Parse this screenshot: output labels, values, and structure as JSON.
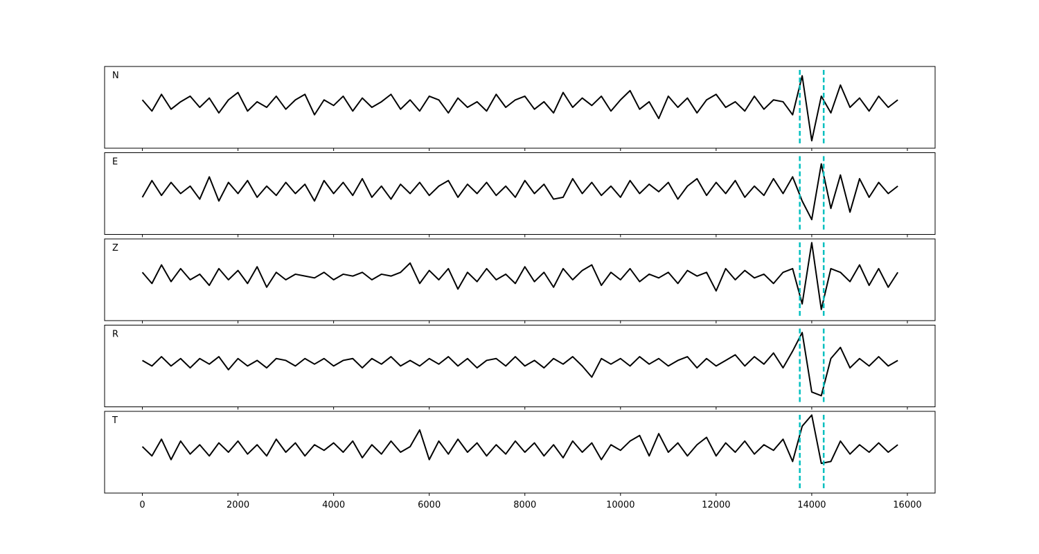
{
  "chart_data": {
    "type": "line",
    "layout": "stacked",
    "x": [
      0,
      200,
      400,
      600,
      800,
      1000,
      1200,
      1400,
      1600,
      1800,
      2000,
      2200,
      2400,
      2600,
      2800,
      3000,
      3200,
      3400,
      3600,
      3800,
      4000,
      4200,
      4400,
      4600,
      4800,
      5000,
      5200,
      5400,
      5600,
      5800,
      6000,
      6200,
      6400,
      6600,
      6800,
      7000,
      7200,
      7400,
      7600,
      7800,
      8000,
      8200,
      8400,
      8600,
      8800,
      9000,
      9200,
      9400,
      9600,
      9800,
      10000,
      10200,
      10400,
      10600,
      10800,
      11000,
      11200,
      11400,
      11600,
      11800,
      12000,
      12200,
      12400,
      12600,
      12800,
      13000,
      13200,
      13400,
      13600,
      13800,
      14000,
      14200,
      14400,
      14600,
      14800,
      15000,
      15200,
      15400,
      15600,
      15800
    ],
    "series": [
      {
        "name": "N",
        "color": "#000000",
        "values": [
          0.1,
          -0.2,
          0.25,
          -0.15,
          0.05,
          0.2,
          -0.1,
          0.15,
          -0.25,
          0.1,
          0.3,
          -0.2,
          0.05,
          -0.1,
          0.2,
          -0.15,
          0.1,
          0.25,
          -0.3,
          0.1,
          -0.05,
          0.2,
          -0.2,
          0.15,
          -0.1,
          0.05,
          0.25,
          -0.15,
          0.1,
          -0.2,
          0.2,
          0.1,
          -0.25,
          0.15,
          -0.1,
          0.05,
          -0.2,
          0.25,
          -0.1,
          0.1,
          0.2,
          -0.15,
          0.05,
          -0.25,
          0.3,
          -0.1,
          0.15,
          -0.05,
          0.2,
          -0.2,
          0.1,
          0.35,
          -0.15,
          0.05,
          -0.4,
          0.2,
          -0.1,
          0.15,
          -0.25,
          0.1,
          0.25,
          -0.1,
          0.05,
          -0.2,
          0.2,
          -0.15,
          0.1,
          0.05,
          -0.3,
          0.75,
          -1.0,
          0.2,
          -0.25,
          0.5,
          -0.1,
          0.15,
          -0.2,
          0.2,
          -0.1,
          0.1
        ]
      },
      {
        "name": "E",
        "color": "#000000",
        "values": [
          -0.2,
          0.25,
          -0.15,
          0.2,
          -0.1,
          0.1,
          -0.25,
          0.35,
          -0.3,
          0.2,
          -0.1,
          0.25,
          -0.2,
          0.1,
          -0.15,
          0.2,
          -0.1,
          0.15,
          -0.3,
          0.25,
          -0.1,
          0.2,
          -0.15,
          0.3,
          -0.2,
          0.1,
          -0.25,
          0.15,
          -0.1,
          0.2,
          -0.15,
          0.1,
          0.25,
          -0.2,
          0.15,
          -0.1,
          0.2,
          -0.15,
          0.1,
          -0.2,
          0.25,
          -0.1,
          0.15,
          -0.25,
          -0.2,
          0.3,
          -0.1,
          0.2,
          -0.15,
          0.1,
          -0.2,
          0.25,
          -0.1,
          0.15,
          -0.05,
          0.2,
          -0.25,
          0.1,
          0.3,
          -0.15,
          0.2,
          -0.1,
          0.25,
          -0.2,
          0.1,
          -0.15,
          0.3,
          -0.1,
          0.35,
          -0.3,
          -0.8,
          0.7,
          -0.5,
          0.4,
          -0.6,
          0.3,
          -0.2,
          0.2,
          -0.1,
          0.1
        ]
      },
      {
        "name": "Z",
        "color": "#000000",
        "values": [
          0.1,
          -0.2,
          0.3,
          -0.15,
          0.2,
          -0.1,
          0.05,
          -0.25,
          0.2,
          -0.1,
          0.15,
          -0.2,
          0.25,
          -0.3,
          0.1,
          -0.1,
          0.05,
          0.0,
          -0.05,
          0.1,
          -0.1,
          0.05,
          0.0,
          0.1,
          -0.1,
          0.05,
          0.0,
          0.1,
          0.35,
          -0.2,
          0.15,
          -0.1,
          0.2,
          -0.35,
          0.1,
          -0.15,
          0.2,
          -0.1,
          0.05,
          -0.2,
          0.25,
          -0.15,
          0.1,
          -0.3,
          0.2,
          -0.1,
          0.15,
          0.3,
          -0.25,
          0.1,
          -0.1,
          0.2,
          -0.15,
          0.05,
          -0.05,
          0.1,
          -0.2,
          0.15,
          0.0,
          0.1,
          -0.4,
          0.2,
          -0.1,
          0.15,
          -0.05,
          0.05,
          -0.2,
          0.1,
          0.2,
          -0.75,
          0.9,
          -0.9,
          0.2,
          0.1,
          -0.15,
          0.3,
          -0.25,
          0.2,
          -0.3,
          0.1
        ]
      },
      {
        "name": "R",
        "color": "#000000",
        "values": [
          0.05,
          -0.1,
          0.15,
          -0.1,
          0.1,
          -0.15,
          0.1,
          -0.05,
          0.15,
          -0.2,
          0.1,
          -0.1,
          0.05,
          -0.15,
          0.1,
          0.05,
          -0.1,
          0.1,
          -0.05,
          0.1,
          -0.1,
          0.05,
          0.1,
          -0.15,
          0.1,
          -0.05,
          0.15,
          -0.1,
          0.05,
          -0.1,
          0.1,
          -0.05,
          0.15,
          -0.1,
          0.1,
          -0.15,
          0.05,
          0.1,
          -0.1,
          0.15,
          -0.1,
          0.05,
          -0.15,
          0.1,
          -0.05,
          0.15,
          -0.1,
          -0.4,
          0.1,
          -0.05,
          0.1,
          -0.1,
          0.15,
          -0.05,
          0.1,
          -0.1,
          0.05,
          0.15,
          -0.15,
          0.1,
          -0.1,
          0.05,
          0.2,
          -0.1,
          0.15,
          -0.05,
          0.25,
          -0.15,
          0.3,
          0.8,
          -0.8,
          -0.9,
          0.1,
          0.4,
          -0.15,
          0.1,
          -0.1,
          0.15,
          -0.1,
          0.05
        ]
      },
      {
        "name": "T",
        "color": "#000000",
        "values": [
          0.05,
          -0.2,
          0.25,
          -0.3,
          0.2,
          -0.15,
          0.1,
          -0.2,
          0.15,
          -0.1,
          0.2,
          -0.15,
          0.1,
          -0.2,
          0.25,
          -0.1,
          0.15,
          -0.2,
          0.1,
          -0.05,
          0.15,
          -0.1,
          0.2,
          -0.25,
          0.1,
          -0.15,
          0.2,
          -0.1,
          0.05,
          0.5,
          -0.3,
          0.2,
          -0.15,
          0.25,
          -0.1,
          0.15,
          -0.2,
          0.1,
          -0.15,
          0.2,
          -0.1,
          0.15,
          -0.2,
          0.1,
          -0.25,
          0.2,
          -0.1,
          0.15,
          -0.3,
          0.1,
          -0.05,
          0.2,
          0.35,
          -0.2,
          0.4,
          -0.1,
          0.15,
          -0.2,
          0.1,
          0.3,
          -0.2,
          0.15,
          -0.1,
          0.2,
          -0.15,
          0.1,
          -0.05,
          0.25,
          -0.35,
          0.6,
          0.9,
          -0.4,
          -0.35,
          0.2,
          -0.15,
          0.1,
          -0.1,
          0.15,
          -0.1,
          0.1
        ]
      }
    ],
    "xlim": [
      -790,
      16580
    ],
    "xticks": [
      0,
      2000,
      4000,
      6000,
      8000,
      10000,
      12000,
      14000,
      16000
    ],
    "ylim": [
      -1.2,
      1.0
    ],
    "picks": [
      13750,
      14250
    ],
    "pick_color": "#00bfbf"
  }
}
